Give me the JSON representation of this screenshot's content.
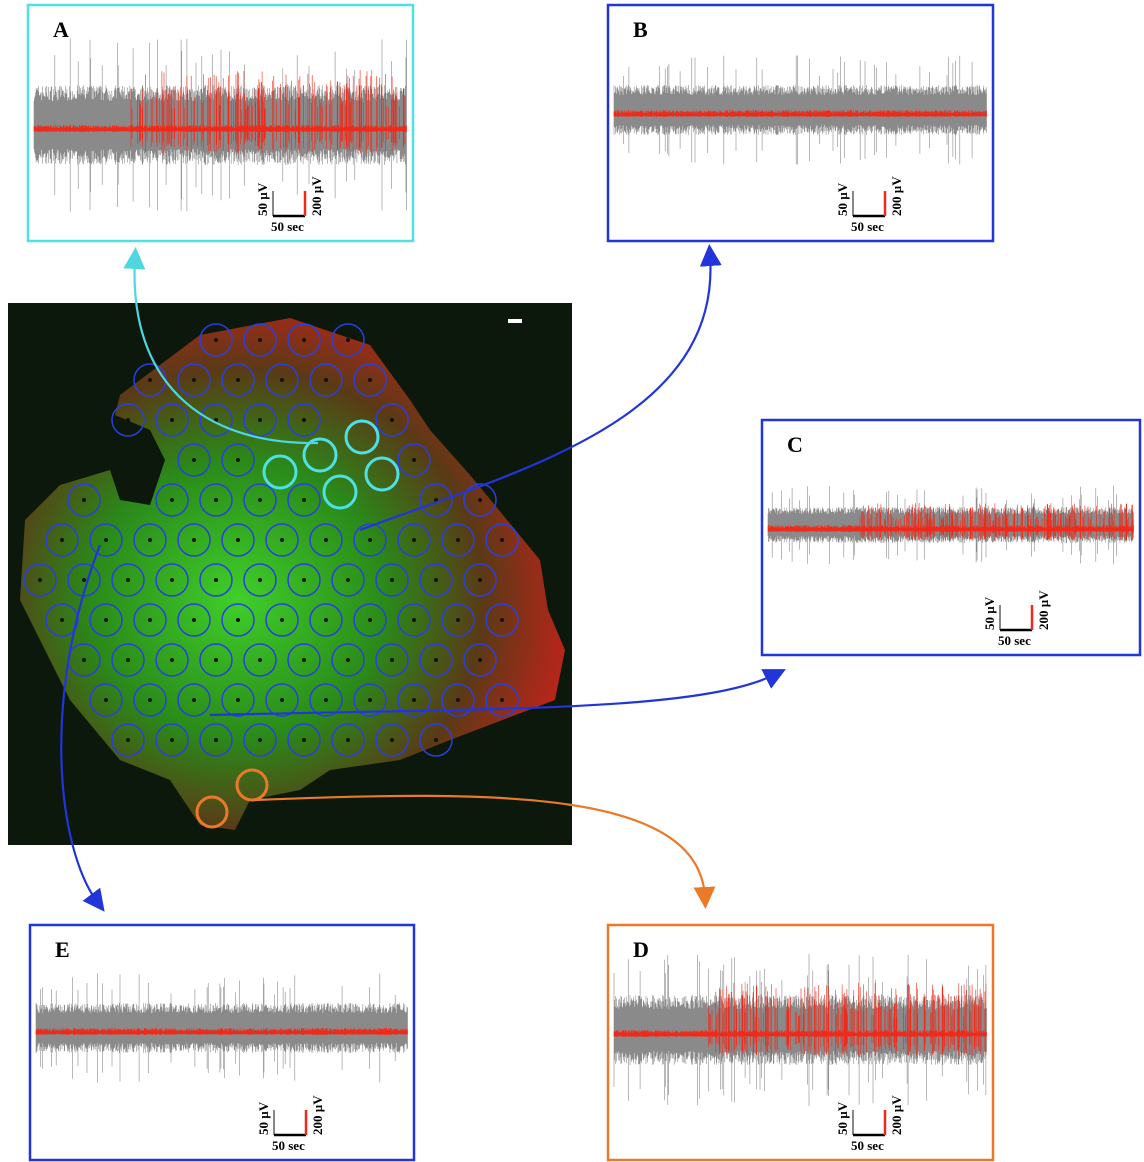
{
  "panels": [
    {
      "label": "A",
      "scale_left": "50 µV",
      "scale_right": "200 µV",
      "scale_time": "50 sec"
    },
    {
      "label": "B",
      "scale_left": "50 µV",
      "scale_right": "200 µV",
      "scale_time": "50 sec"
    },
    {
      "label": "C",
      "scale_left": "50 µV",
      "scale_right": "200 µV",
      "scale_time": "50 sec"
    },
    {
      "label": "D",
      "scale_left": "50 µV",
      "scale_right": "200 µV",
      "scale_time": "50 sec"
    },
    {
      "label": "E",
      "scale_left": "50 µV",
      "scale_right": "200 µV",
      "scale_time": "50 sec"
    }
  ]
}
